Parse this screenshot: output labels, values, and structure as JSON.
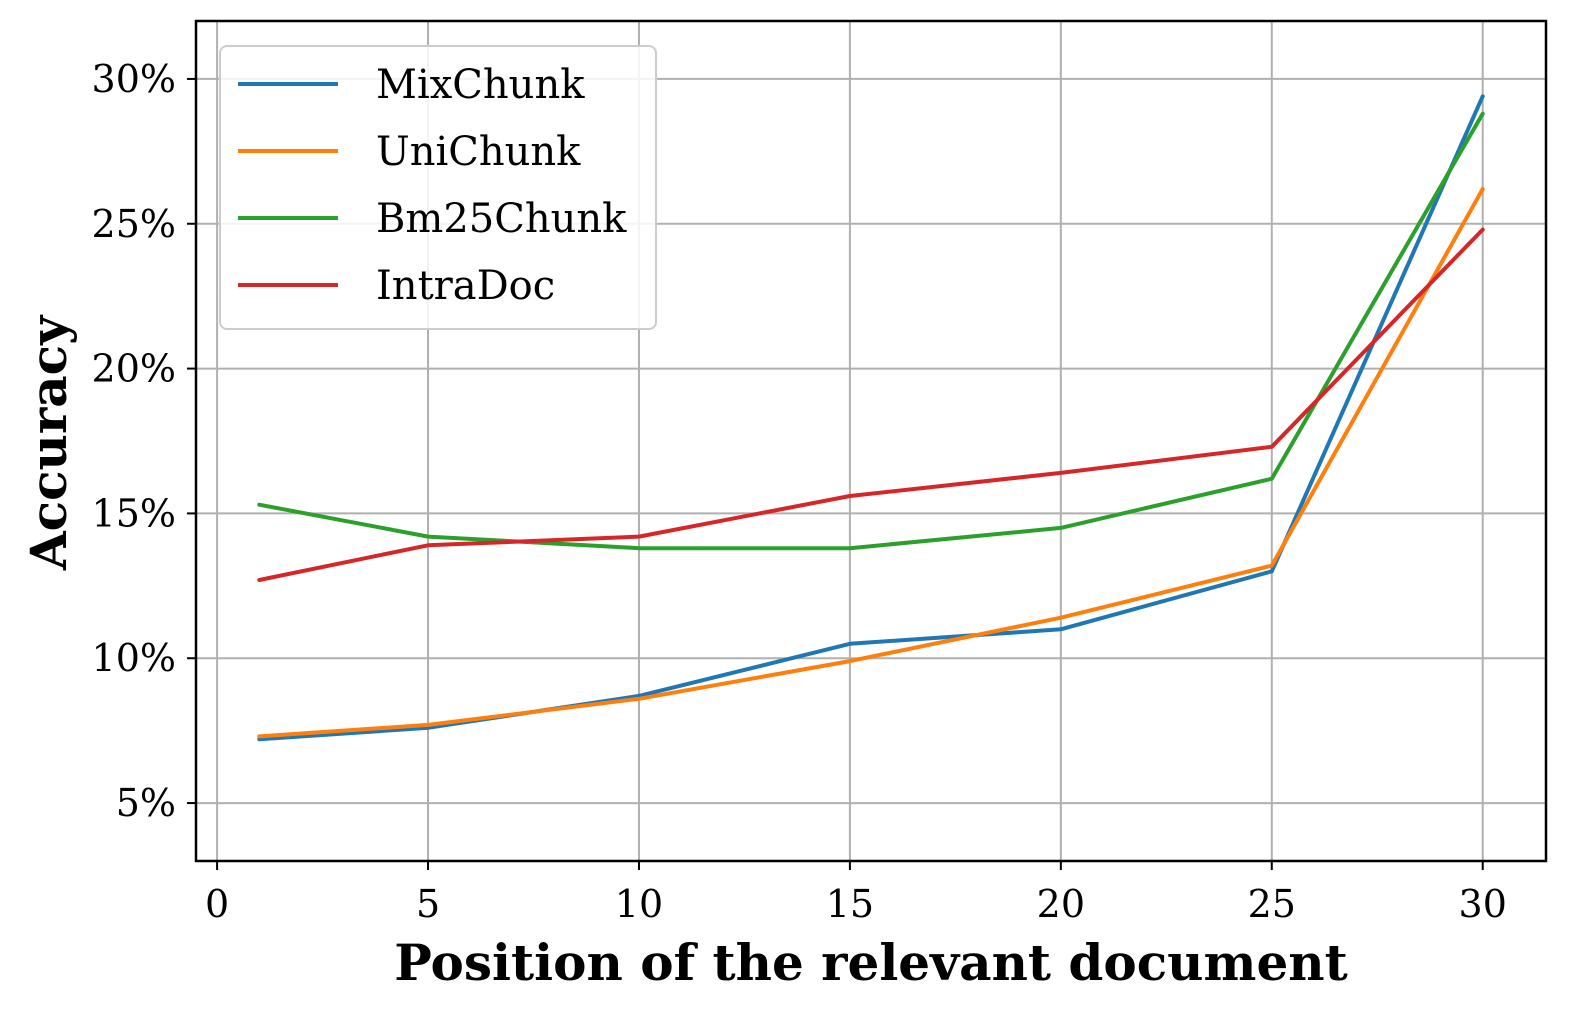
{
  "chart_data": {
    "type": "line",
    "xlabel": "Position of the relevant document",
    "ylabel": "Accuracy",
    "xlim": [
      -0.5,
      31.5
    ],
    "ylim": [
      3,
      32
    ],
    "x_ticks": [
      0,
      5,
      10,
      15,
      20,
      25,
      30
    ],
    "y_ticks": [
      5,
      10,
      15,
      20,
      25,
      30
    ],
    "y_tick_labels": [
      "5%",
      "10%",
      "15%",
      "20%",
      "25%",
      "30%"
    ],
    "grid": true,
    "legend_placement": "top-left",
    "x": [
      1,
      5,
      10,
      15,
      20,
      25,
      30
    ],
    "series": [
      {
        "name": "MixChunk",
        "color": "#1f77b4",
        "values": [
          7.2,
          7.6,
          8.7,
          10.5,
          11.0,
          13.0,
          29.4
        ]
      },
      {
        "name": "UniChunk",
        "color": "#ff7f0e",
        "values": [
          7.3,
          7.7,
          8.6,
          9.9,
          11.4,
          13.2,
          26.2
        ]
      },
      {
        "name": "Bm25Chunk",
        "color": "#2ca02c",
        "values": [
          15.3,
          14.2,
          13.8,
          13.8,
          14.5,
          16.2,
          28.8
        ]
      },
      {
        "name": "IntraDoc",
        "color": "#d62728",
        "values": [
          12.7,
          13.9,
          14.2,
          15.6,
          16.4,
          17.3,
          24.8
        ]
      }
    ]
  }
}
